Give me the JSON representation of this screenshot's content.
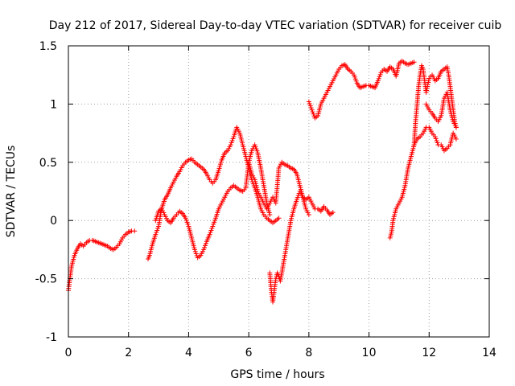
{
  "chart_data": {
    "type": "scatter",
    "title": "Day 212 of 2017, Sidereal Day-to-day VTEC variation (SDTVAR) for receiver cuib",
    "xlabel": "GPS time / hours",
    "ylabel": "SDTVAR / TECUs",
    "xlim": [
      0,
      14
    ],
    "ylim": [
      -1,
      1.5
    ],
    "xticks": [
      0,
      2,
      4,
      6,
      8,
      10,
      12,
      14
    ],
    "yticks": [
      -1,
      -0.5,
      0,
      0.5,
      1,
      1.5
    ],
    "xtick_labels": [
      "0",
      "2",
      "4",
      "6",
      "8",
      "10",
      "12",
      "14"
    ],
    "ytick_labels": [
      "-1",
      "-0.5",
      "0",
      "0.5",
      "1",
      "1.5"
    ],
    "grid": true,
    "marker": "+",
    "color": "#ff0000",
    "series": [
      {
        "x": [
          0.0,
          0.05,
          0.1,
          0.2,
          0.3,
          0.4,
          0.5,
          0.6,
          0.7,
          0.8,
          0.9,
          1.0,
          1.1,
          1.2,
          1.3,
          1.4,
          1.5,
          1.6,
          1.7,
          1.8,
          1.9,
          2.0,
          2.1,
          2.2
        ],
        "y": [
          -0.6,
          -0.5,
          -0.4,
          -0.3,
          -0.24,
          -0.2,
          -0.22,
          -0.19,
          -0.17,
          -0.17,
          -0.18,
          -0.19,
          -0.2,
          -0.21,
          -0.22,
          -0.24,
          -0.25,
          -0.23,
          -0.2,
          -0.15,
          -0.12,
          -0.1,
          -0.09,
          -0.09
        ]
      },
      {
        "x": [
          2.65,
          2.7,
          2.8,
          2.9,
          3.0,
          3.1,
          3.2,
          3.3,
          3.4,
          3.5,
          3.6,
          3.7,
          3.8,
          3.9,
          4.0,
          4.1,
          4.2,
          4.3,
          4.4,
          4.5,
          4.6,
          4.7,
          4.8,
          4.9,
          5.0,
          5.1,
          5.2,
          5.3,
          5.4,
          5.5,
          5.6,
          5.7,
          5.8,
          5.9,
          6.0,
          6.1,
          6.2,
          6.3,
          6.4,
          6.5,
          6.6,
          6.7,
          6.8,
          6.9,
          7.0
        ],
        "y": [
          -0.33,
          -0.3,
          -0.2,
          -0.12,
          -0.05,
          0.1,
          0.18,
          0.22,
          0.28,
          0.33,
          0.38,
          0.42,
          0.47,
          0.5,
          0.52,
          0.53,
          0.5,
          0.48,
          0.46,
          0.44,
          0.4,
          0.35,
          0.32,
          0.35,
          0.43,
          0.52,
          0.58,
          0.6,
          0.65,
          0.72,
          0.8,
          0.75,
          0.65,
          0.55,
          0.45,
          0.35,
          0.28,
          0.2,
          0.1,
          0.05,
          0.02,
          0.0,
          -0.02,
          0.0,
          0.02
        ]
      },
      {
        "x": [
          2.9,
          3.0,
          3.1,
          3.2,
          3.3,
          3.4,
          3.5,
          3.6,
          3.7,
          3.8,
          3.9,
          4.0,
          4.1,
          4.2,
          4.3,
          4.4,
          4.5,
          4.6,
          4.7,
          4.8,
          4.9,
          5.0,
          5.1,
          5.2,
          5.3,
          5.4,
          5.5,
          5.6,
          5.7,
          5.8,
          5.9,
          6.0,
          6.1,
          6.2,
          6.3,
          6.4,
          6.5,
          6.6,
          6.7
        ],
        "y": [
          0.0,
          0.08,
          0.1,
          0.05,
          0.0,
          -0.02,
          0.02,
          0.05,
          0.08,
          0.06,
          0.02,
          -0.05,
          -0.15,
          -0.25,
          -0.32,
          -0.3,
          -0.25,
          -0.18,
          -0.12,
          -0.05,
          0.02,
          0.1,
          0.15,
          0.2,
          0.25,
          0.28,
          0.3,
          0.28,
          0.26,
          0.25,
          0.28,
          0.5,
          0.6,
          0.65,
          0.58,
          0.45,
          0.3,
          0.15,
          0.05
        ]
      },
      {
        "x": [
          6.7,
          6.75,
          6.8,
          6.85,
          6.9,
          6.95,
          7.0,
          7.05,
          7.1,
          7.2,
          7.3,
          7.4,
          7.5,
          7.6,
          7.7,
          7.8,
          7.9,
          8.0,
          8.1,
          8.2,
          8.3,
          8.4,
          8.5,
          8.6,
          8.7,
          8.8
        ],
        "y": [
          -0.45,
          -0.6,
          -0.7,
          -0.6,
          -0.5,
          -0.45,
          -0.48,
          -0.52,
          -0.45,
          -0.3,
          -0.15,
          0.0,
          0.1,
          0.18,
          0.25,
          0.2,
          0.18,
          0.2,
          0.15,
          0.1,
          0.1,
          0.08,
          0.12,
          0.09,
          0.05,
          0.07
        ]
      },
      {
        "x": [
          6.0,
          6.1,
          6.2,
          6.3,
          6.4,
          6.5,
          6.6,
          6.7,
          6.8,
          6.9,
          7.0,
          7.1,
          7.2,
          7.3,
          7.4,
          7.5,
          7.6,
          7.7,
          7.8,
          7.9,
          8.0
        ],
        "y": [
          0.5,
          0.4,
          0.35,
          0.25,
          0.2,
          0.15,
          0.1,
          0.15,
          0.2,
          0.15,
          0.45,
          0.5,
          0.48,
          0.47,
          0.45,
          0.44,
          0.4,
          0.3,
          0.2,
          0.1,
          0.05
        ]
      },
      {
        "x": [
          8.0,
          8.1,
          8.2,
          8.3,
          8.4,
          8.5,
          8.6,
          8.7,
          8.8,
          8.9,
          9.0,
          9.1,
          9.2,
          9.3,
          9.4,
          9.5,
          9.6,
          9.7,
          9.8,
          9.9,
          10.0,
          10.1,
          10.2,
          10.3,
          10.4,
          10.5,
          10.6,
          10.7,
          10.8,
          10.9,
          11.0,
          11.1,
          11.2,
          11.3,
          11.4,
          11.5
        ],
        "y": [
          1.02,
          0.95,
          0.88,
          0.9,
          1.0,
          1.05,
          1.1,
          1.15,
          1.2,
          1.25,
          1.3,
          1.33,
          1.34,
          1.3,
          1.28,
          1.25,
          1.18,
          1.14,
          1.15,
          1.16,
          1.16,
          1.15,
          1.14,
          1.2,
          1.27,
          1.3,
          1.28,
          1.32,
          1.3,
          1.24,
          1.35,
          1.37,
          1.35,
          1.34,
          1.35,
          1.36
        ]
      },
      {
        "x": [
          10.7,
          10.75,
          10.8,
          10.9,
          11.0,
          11.1,
          11.2,
          11.3,
          11.4,
          11.5,
          11.6,
          11.7,
          11.8,
          11.9,
          12.0,
          12.1,
          12.2,
          12.3,
          12.4,
          12.5,
          12.6,
          12.7,
          12.8,
          12.9
        ],
        "y": [
          -0.15,
          -0.1,
          0.0,
          0.1,
          0.15,
          0.2,
          0.3,
          0.45,
          0.55,
          0.65,
          0.7,
          0.72,
          0.75,
          0.8,
          0.8,
          0.75,
          0.72,
          0.65,
          0.65,
          0.6,
          0.62,
          0.65,
          0.75,
          0.7
        ]
      },
      {
        "x": [
          11.5,
          11.55,
          11.6,
          11.65,
          11.7,
          11.75,
          11.8,
          11.85,
          11.9,
          12.0,
          12.1,
          12.2,
          12.3,
          12.4,
          12.5,
          12.6,
          12.65,
          12.7,
          12.75,
          12.8,
          12.85,
          12.9
        ],
        "y": [
          0.65,
          0.85,
          1.0,
          1.15,
          1.25,
          1.33,
          1.3,
          1.2,
          1.1,
          1.22,
          1.25,
          1.2,
          1.22,
          1.28,
          1.3,
          1.32,
          1.25,
          1.15,
          1.05,
          0.95,
          0.85,
          0.8
        ]
      },
      {
        "x": [
          11.9,
          12.0,
          12.1,
          12.2,
          12.3,
          12.4,
          12.5,
          12.6,
          12.7,
          12.8,
          12.9
        ],
        "y": [
          1.0,
          0.95,
          0.92,
          0.88,
          0.85,
          0.9,
          1.05,
          1.1,
          0.95,
          0.85,
          0.8
        ]
      }
    ]
  }
}
